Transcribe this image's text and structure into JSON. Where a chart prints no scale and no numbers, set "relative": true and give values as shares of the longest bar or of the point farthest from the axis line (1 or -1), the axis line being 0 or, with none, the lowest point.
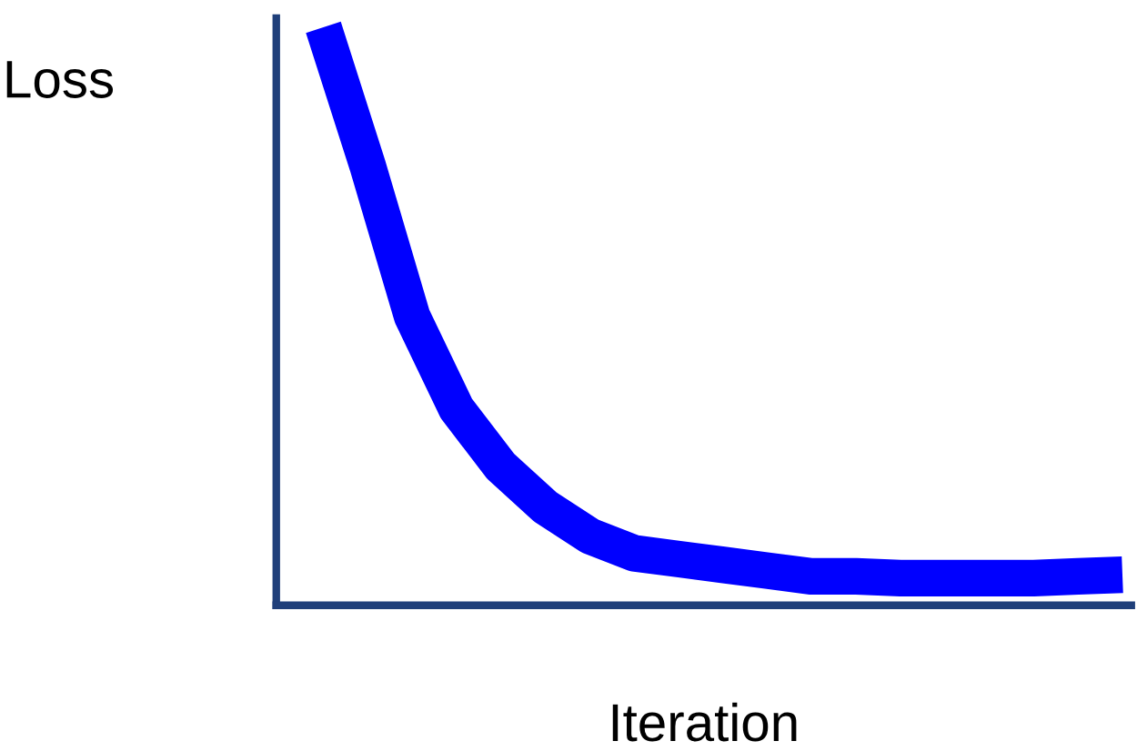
{
  "chart_data": {
    "type": "line",
    "relative": true,
    "xlabel": "Iteration",
    "ylabel": "Loss",
    "categories": [
      null,
      null,
      null,
      null,
      null,
      null,
      null,
      null,
      null,
      null,
      null,
      null,
      null,
      null,
      null,
      null,
      null,
      null,
      null
    ],
    "series": [
      {
        "color": "#0000ff",
        "values": [
          1.0,
          0.76,
          0.5,
          0.34,
          0.24,
          0.17,
          0.12,
          0.09,
          0.08,
          0.07,
          0.06,
          0.05,
          0.05,
          0.047,
          0.047,
          0.047,
          0.047,
          0.05,
          0.053
        ]
      }
    ],
    "grid": false,
    "legend": false,
    "marker": "none",
    "line_style": "solid"
  }
}
